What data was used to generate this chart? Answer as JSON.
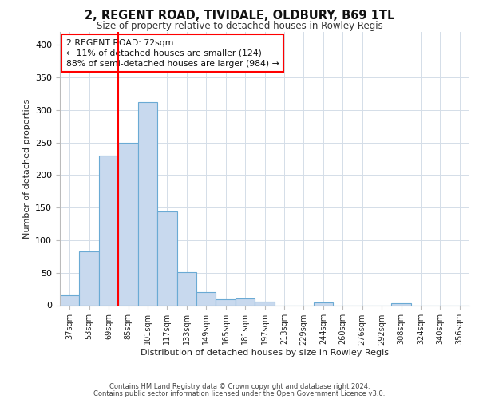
{
  "title": "2, REGENT ROAD, TIVIDALE, OLDBURY, B69 1TL",
  "subtitle": "Size of property relative to detached houses in Rowley Regis",
  "xlabel": "Distribution of detached houses by size in Rowley Regis",
  "ylabel": "Number of detached properties",
  "categories": [
    "37sqm",
    "53sqm",
    "69sqm",
    "85sqm",
    "101sqm",
    "117sqm",
    "133sqm",
    "149sqm",
    "165sqm",
    "181sqm",
    "197sqm",
    "213sqm",
    "229sqm",
    "244sqm",
    "260sqm",
    "276sqm",
    "292sqm",
    "308sqm",
    "324sqm",
    "340sqm",
    "356sqm"
  ],
  "values": [
    15,
    83,
    230,
    250,
    312,
    144,
    51,
    20,
    9,
    10,
    5,
    0,
    0,
    4,
    0,
    0,
    0,
    3,
    0,
    0,
    0
  ],
  "bar_color": "#c8d9ee",
  "bar_edge_color": "#6aaad4",
  "grid_color": "#d4dde8",
  "background_color": "#ffffff",
  "annotation_line1": "2 REGENT ROAD: 72sqm",
  "annotation_line2": "← 11% of detached houses are smaller (124)",
  "annotation_line3": "88% of semi-detached houses are larger (984) →",
  "red_line_x": 2.5,
  "ylim": [
    0,
    420
  ],
  "yticks": [
    0,
    50,
    100,
    150,
    200,
    250,
    300,
    350,
    400
  ],
  "footer_line1": "Contains HM Land Registry data © Crown copyright and database right 2024.",
  "footer_line2": "Contains public sector information licensed under the Open Government Licence v3.0."
}
